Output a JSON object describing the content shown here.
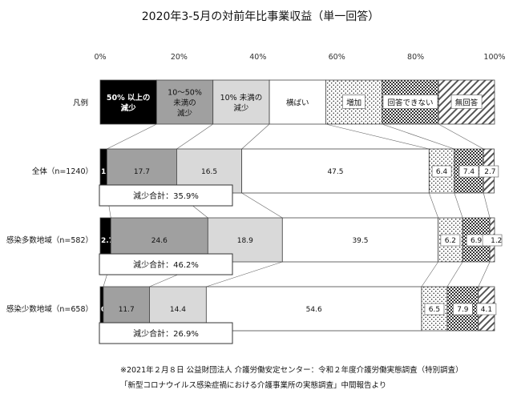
{
  "chart_data": {
    "type": "bar",
    "orientation": "horizontal",
    "stacked": true,
    "title": "2020年3-5月の対前年比事業収益（単一回答）",
    "x_ticks": [
      "0%",
      "20%",
      "40%",
      "60%",
      "80%",
      "100%"
    ],
    "xlim": [
      0,
      100
    ],
    "legend_row_label": "凡例",
    "legend": [
      {
        "name": "50% 以上の減少",
        "lines": [
          "50% 以上の",
          "減少"
        ],
        "fill": "#000000",
        "text_color": "#ffffff"
      },
      {
        "name": "10〜50% 未満の減少",
        "lines": [
          "10〜50%",
          "未満の",
          "減少"
        ],
        "fill": "#a0a0a0",
        "text_color": "#111111"
      },
      {
        "name": "10% 未満の減少",
        "lines": [
          "10% 未満の",
          "減少"
        ],
        "fill": "#d9d9d9",
        "text_color": "#111111"
      },
      {
        "name": "横ばい",
        "lines": [
          "横ばい"
        ],
        "fill": "#ffffff",
        "text_color": "#111111"
      },
      {
        "name": "増加",
        "lines": [
          "増加"
        ],
        "fill": "dots",
        "text_color": "#111111"
      },
      {
        "name": "回答できない",
        "lines": [
          "回答できない"
        ],
        "fill": "checker",
        "text_color": "#111111"
      },
      {
        "name": "無回答",
        "lines": [
          "無回答"
        ],
        "fill": "hatch",
        "text_color": "#111111"
      }
    ],
    "legend_shares": [
      14.3,
      14.3,
      14.3,
      14.3,
      14.3,
      14.3,
      14.2
    ],
    "rows": [
      {
        "label": "全体（n=1240）",
        "values": [
          1.7,
          17.7,
          16.5,
          47.5,
          6.4,
          7.4,
          2.7
        ],
        "labels": [
          "1.7",
          "17.7",
          "16.5",
          "47.5",
          "6.4",
          "7.4",
          "2.7"
        ],
        "summary": "減少合計：35.9%"
      },
      {
        "label": "感染多数地域（n=582）",
        "values": [
          2.7,
          24.6,
          18.9,
          39.5,
          6.2,
          6.9,
          1.2
        ],
        "labels": [
          "2.7",
          "24.6",
          "18.9",
          "39.5",
          "6.2",
          "6.9",
          "1.2"
        ],
        "summary": "減少合計：46.2%"
      },
      {
        "label": "感染少数地域（n=658）",
        "values": [
          0.8,
          11.7,
          14.4,
          54.6,
          6.5,
          7.9,
          4.1
        ],
        "labels": [
          "0.8",
          "11.7",
          "14.4",
          "54.6",
          "6.5",
          "7.9",
          "4.1"
        ],
        "summary": "減少合計：26.9%"
      }
    ],
    "grid": false
  },
  "footnote": {
    "line1": "※2021年２月８日 公益財団法人 介護労働安定センター：令和２年度介護労働実態調査（特別調査）",
    "line2": "「新型コロナウイルス感染症禍における介護事業所の実態調査」中間報告より"
  }
}
